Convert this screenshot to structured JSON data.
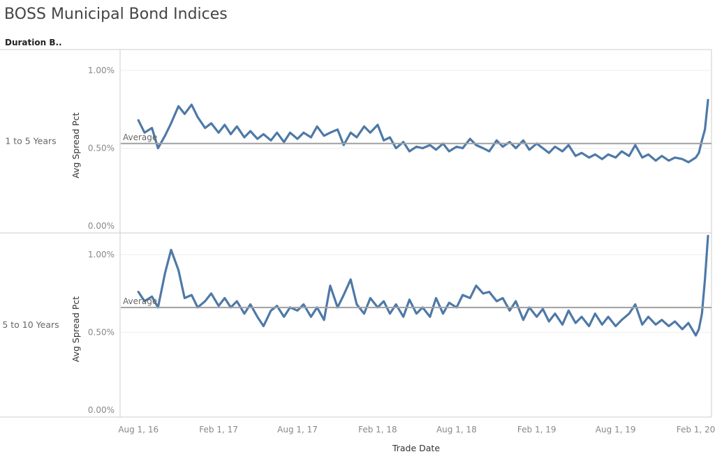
{
  "title": "BOSS Municipal Bond Indices",
  "column_header": "Duration B..",
  "colors": {
    "line": "#4e79a7",
    "average": "#a0a0a0",
    "grid": "#eeeeee",
    "border": "#cccccc"
  },
  "chart_data": {
    "type": "line",
    "title": "BOSS Municipal Bond Indices",
    "xlabel": "Trade Date",
    "ylabel": "Avg Spread Pct",
    "x_ticks": [
      "Aug 1, 16",
      "Feb 1, 17",
      "Aug 1, 17",
      "Feb 1, 18",
      "Aug 1, 18",
      "Feb 1, 19",
      "Aug 1, 19",
      "Feb 1, 20"
    ],
    "grid": true,
    "panels": [
      {
        "row_label": "1 to 5 Years",
        "y_ticks": [
          "0.00%",
          "0.50%",
          "1.00%"
        ],
        "ylim": [
          0,
          1.1
        ],
        "average": 0.53,
        "average_label": "Average",
        "x": [
          "2016-08-01",
          "2016-08-15",
          "2016-09-01",
          "2016-09-15",
          "2016-10-01",
          "2016-10-15",
          "2016-11-01",
          "2016-11-15",
          "2016-12-01",
          "2016-12-15",
          "2017-01-01",
          "2017-01-15",
          "2017-02-01",
          "2017-02-15",
          "2017-03-01",
          "2017-03-15",
          "2017-04-01",
          "2017-04-15",
          "2017-05-01",
          "2017-05-15",
          "2017-06-01",
          "2017-06-15",
          "2017-07-01",
          "2017-07-15",
          "2017-08-01",
          "2017-08-15",
          "2017-09-01",
          "2017-09-15",
          "2017-10-01",
          "2017-10-15",
          "2017-11-01",
          "2017-11-15",
          "2017-12-01",
          "2017-12-15",
          "2018-01-01",
          "2018-01-15",
          "2018-02-01",
          "2018-02-15",
          "2018-03-01",
          "2018-03-15",
          "2018-04-01",
          "2018-04-15",
          "2018-05-01",
          "2018-05-15",
          "2018-06-01",
          "2018-06-15",
          "2018-07-01",
          "2018-07-15",
          "2018-08-01",
          "2018-08-15",
          "2018-09-01",
          "2018-09-15",
          "2018-10-01",
          "2018-10-15",
          "2018-11-01",
          "2018-11-15",
          "2018-12-01",
          "2018-12-15",
          "2019-01-01",
          "2019-01-15",
          "2019-02-01",
          "2019-02-15",
          "2019-03-01",
          "2019-03-15",
          "2019-04-01",
          "2019-04-15",
          "2019-05-01",
          "2019-05-15",
          "2019-06-01",
          "2019-06-15",
          "2019-07-01",
          "2019-07-15",
          "2019-08-01",
          "2019-08-15",
          "2019-09-01",
          "2019-09-15",
          "2019-10-01",
          "2019-10-15",
          "2019-11-01",
          "2019-11-15",
          "2019-12-01",
          "2019-12-15",
          "2020-01-01",
          "2020-01-15",
          "2020-02-01",
          "2020-02-08",
          "2020-02-15",
          "2020-02-22",
          "2020-02-29"
        ],
        "values": [
          0.68,
          0.6,
          0.63,
          0.5,
          0.58,
          0.66,
          0.77,
          0.72,
          0.78,
          0.7,
          0.63,
          0.66,
          0.6,
          0.65,
          0.59,
          0.64,
          0.57,
          0.61,
          0.56,
          0.59,
          0.55,
          0.6,
          0.54,
          0.6,
          0.56,
          0.6,
          0.57,
          0.64,
          0.58,
          0.6,
          0.62,
          0.52,
          0.6,
          0.57,
          0.64,
          0.6,
          0.65,
          0.55,
          0.57,
          0.5,
          0.54,
          0.48,
          0.51,
          0.5,
          0.52,
          0.49,
          0.53,
          0.48,
          0.51,
          0.5,
          0.56,
          0.52,
          0.5,
          0.48,
          0.55,
          0.51,
          0.54,
          0.5,
          0.55,
          0.49,
          0.53,
          0.5,
          0.47,
          0.51,
          0.48,
          0.52,
          0.45,
          0.47,
          0.44,
          0.46,
          0.43,
          0.46,
          0.44,
          0.48,
          0.45,
          0.52,
          0.44,
          0.46,
          0.42,
          0.45,
          0.42,
          0.44,
          0.43,
          0.41,
          0.44,
          0.47,
          0.55,
          0.62,
          0.81
        ]
      },
      {
        "row_label": "5 to 10 Years",
        "y_ticks": [
          "0.00%",
          "0.50%",
          "1.00%"
        ],
        "ylim": [
          0,
          1.1
        ],
        "average": 0.66,
        "average_label": "Average",
        "x": [
          "2016-08-01",
          "2016-08-15",
          "2016-09-01",
          "2016-09-15",
          "2016-10-01",
          "2016-10-15",
          "2016-11-01",
          "2016-11-15",
          "2016-12-01",
          "2016-12-15",
          "2017-01-01",
          "2017-01-15",
          "2017-02-01",
          "2017-02-15",
          "2017-03-01",
          "2017-03-15",
          "2017-04-01",
          "2017-04-15",
          "2017-05-01",
          "2017-05-15",
          "2017-06-01",
          "2017-06-15",
          "2017-07-01",
          "2017-07-15",
          "2017-08-01",
          "2017-08-15",
          "2017-09-01",
          "2017-09-15",
          "2017-10-01",
          "2017-10-15",
          "2017-11-01",
          "2017-11-15",
          "2017-12-01",
          "2017-12-15",
          "2018-01-01",
          "2018-01-15",
          "2018-02-01",
          "2018-02-15",
          "2018-03-01",
          "2018-03-15",
          "2018-04-01",
          "2018-04-15",
          "2018-05-01",
          "2018-05-15",
          "2018-06-01",
          "2018-06-15",
          "2018-07-01",
          "2018-07-15",
          "2018-08-01",
          "2018-08-15",
          "2018-09-01",
          "2018-09-15",
          "2018-10-01",
          "2018-10-15",
          "2018-11-01",
          "2018-11-15",
          "2018-12-01",
          "2018-12-15",
          "2019-01-01",
          "2019-01-15",
          "2019-02-01",
          "2019-02-15",
          "2019-03-01",
          "2019-03-15",
          "2019-04-01",
          "2019-04-15",
          "2019-05-01",
          "2019-05-15",
          "2019-06-01",
          "2019-06-15",
          "2019-07-01",
          "2019-07-15",
          "2019-08-01",
          "2019-08-15",
          "2019-09-01",
          "2019-09-15",
          "2019-10-01",
          "2019-10-15",
          "2019-11-01",
          "2019-11-15",
          "2019-12-01",
          "2019-12-15",
          "2020-01-01",
          "2020-01-15",
          "2020-02-01",
          "2020-02-08",
          "2020-02-15",
          "2020-02-22",
          "2020-02-29"
        ],
        "values": [
          0.76,
          0.7,
          0.73,
          0.66,
          0.88,
          1.03,
          0.9,
          0.72,
          0.74,
          0.66,
          0.7,
          0.75,
          0.67,
          0.72,
          0.66,
          0.7,
          0.62,
          0.68,
          0.6,
          0.54,
          0.64,
          0.67,
          0.6,
          0.66,
          0.64,
          0.68,
          0.6,
          0.66,
          0.58,
          0.8,
          0.66,
          0.74,
          0.84,
          0.68,
          0.62,
          0.72,
          0.66,
          0.7,
          0.62,
          0.68,
          0.6,
          0.71,
          0.62,
          0.66,
          0.6,
          0.72,
          0.62,
          0.69,
          0.66,
          0.74,
          0.72,
          0.8,
          0.75,
          0.76,
          0.7,
          0.72,
          0.64,
          0.7,
          0.58,
          0.66,
          0.6,
          0.65,
          0.57,
          0.62,
          0.55,
          0.64,
          0.56,
          0.6,
          0.54,
          0.62,
          0.55,
          0.6,
          0.54,
          0.58,
          0.62,
          0.68,
          0.55,
          0.6,
          0.55,
          0.58,
          0.54,
          0.57,
          0.52,
          0.56,
          0.48,
          0.52,
          0.62,
          0.84,
          1.12
        ]
      }
    ]
  }
}
